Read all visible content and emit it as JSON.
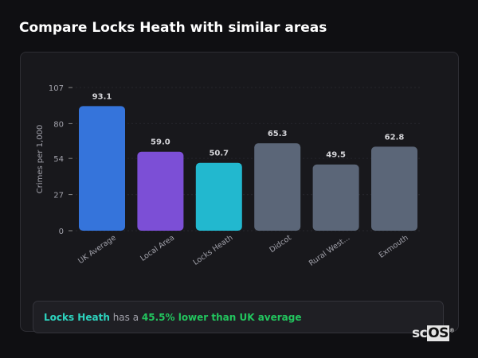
{
  "title": "Compare Locks Heath with similar areas",
  "chart_data": {
    "type": "bar",
    "ylabel": "Crimes per 1,000",
    "ylim": [
      0,
      107
    ],
    "yticks": [
      0,
      27,
      54,
      80,
      107
    ],
    "grid": true,
    "categories": [
      "UK Average",
      "Local Area",
      "Locks Heath",
      "Didcot",
      "Rural West...",
      "Exmouth"
    ],
    "values": [
      93.1,
      59.0,
      50.7,
      65.3,
      49.5,
      62.8
    ],
    "value_labels": [
      "93.1",
      "59.0",
      "50.7",
      "65.3",
      "49.5",
      "62.8"
    ],
    "colors": [
      "#3574db",
      "#7c4fd6",
      "#22b8cf",
      "#5b6678",
      "#5b6678",
      "#5b6678"
    ]
  },
  "footer": {
    "area": "Locks Heath",
    "middle": " has a ",
    "comparison": "45.5% lower than UK average"
  },
  "logo": {
    "text_a": "sc",
    "text_b": "OS",
    "mark": "®"
  }
}
